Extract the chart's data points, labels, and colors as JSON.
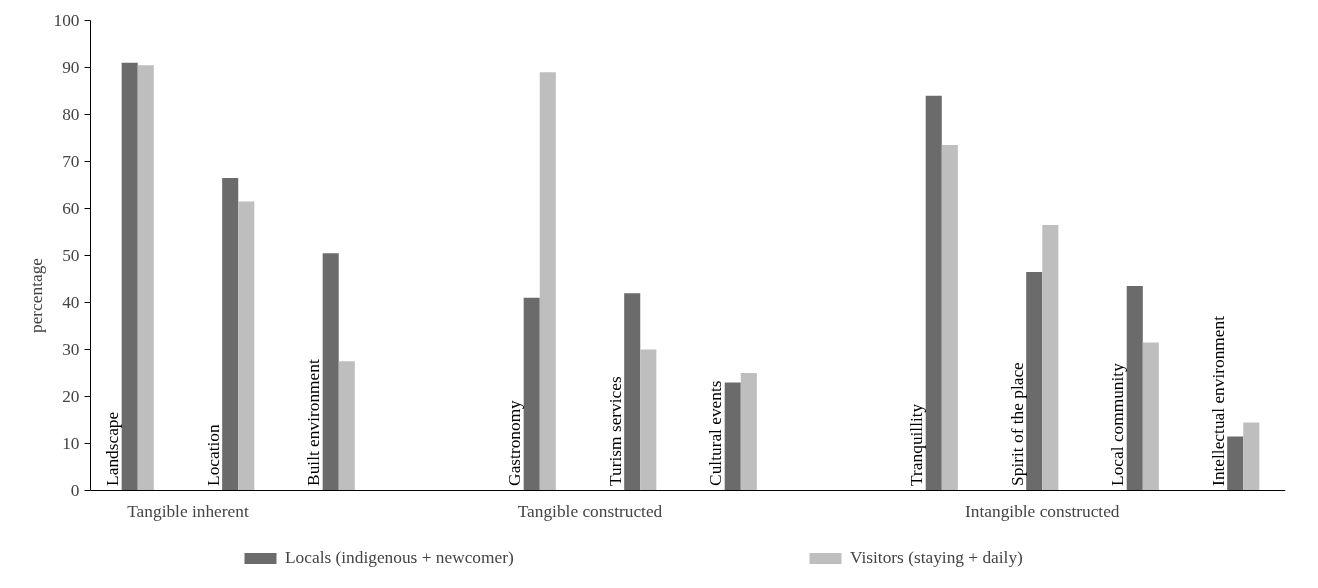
{
  "chart_data": {
    "type": "bar",
    "ylabel": "percentage",
    "categories": [
      "Landscape",
      "Location",
      "Built environment",
      null,
      "Gastronomy",
      "Turism services",
      "Cultural events",
      null,
      "Tranquillity",
      "Spirit of the place",
      "Local community",
      "Intellectual environment"
    ],
    "series": [
      {
        "name": "Locals (indigenous + newcomer)",
        "color": "#6b6b6c",
        "values": [
          91,
          66.5,
          50.5,
          null,
          41,
          42,
          23,
          null,
          84,
          46.5,
          43.5,
          11.5
        ]
      },
      {
        "name": "Visitors (staying + daily)",
        "color": "#bebebf",
        "values": [
          90.5,
          61.5,
          27.5,
          null,
          89,
          30,
          25,
          null,
          73.5,
          56.5,
          31.5,
          14.5
        ]
      }
    ],
    "ylim": [
      0,
      100
    ],
    "yticks": [
      0,
      10,
      20,
      30,
      40,
      50,
      60,
      70,
      80,
      90,
      100
    ],
    "annotations": [
      "Tangible inherent",
      "Tangible constructed",
      "Intangible constructed"
    ],
    "grid": false,
    "legend": "bottom"
  }
}
